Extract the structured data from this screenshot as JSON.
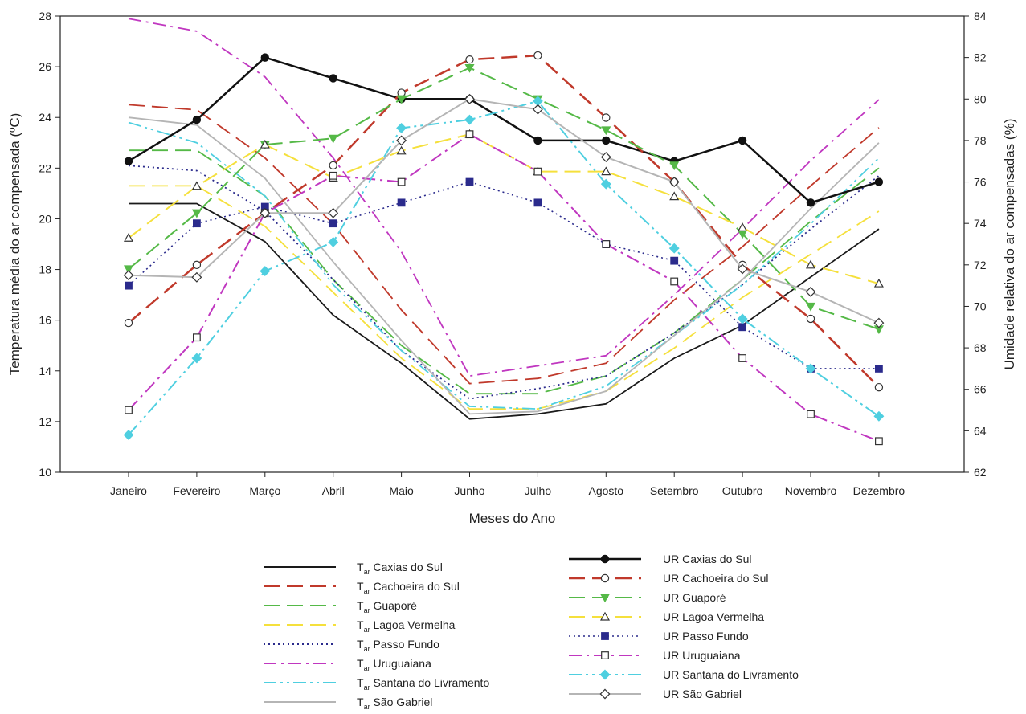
{
  "chart_data": {
    "type": "line",
    "categories": [
      "Janeiro",
      "Fevereiro",
      "Março",
      "Abril",
      "Maio",
      "Junho",
      "Julho",
      "Agosto",
      "Setembro",
      "Outubro",
      "Novembro",
      "Dezembro"
    ],
    "xlabel": "Meses do Ano",
    "ylabel": "Temperatura média do ar compensada (ºC)",
    "ylabel_right": "Umidade relativa do ar compensadas (%)",
    "ylim": [
      10,
      28
    ],
    "ylim_right": [
      62,
      84
    ],
    "yticks": [
      "10",
      "12",
      "14",
      "16",
      "18",
      "20",
      "22",
      "24",
      "26",
      "28"
    ],
    "yticks_right": [
      "62",
      "64",
      "66",
      "68",
      "70",
      "72",
      "74",
      "76",
      "78",
      "80",
      "82",
      "84"
    ],
    "grid": false,
    "legend_position": "bottom",
    "temperature_series": [
      {
        "prefix": "T",
        "sub": "ar",
        "name": "Caxias do Sul",
        "color": "#1a1a1a",
        "dash": "solid",
        "values": [
          20.6,
          20.6,
          19.1,
          16.2,
          14.3,
          12.1,
          12.3,
          12.7,
          14.5,
          15.8,
          17.7,
          19.6
        ]
      },
      {
        "prefix": "T",
        "sub": "ar",
        "name": "Cachoeira do Sul",
        "color": "#c0392b",
        "dash": "longdash",
        "values": [
          24.5,
          24.3,
          22.4,
          19.8,
          16.4,
          13.5,
          13.7,
          14.3,
          16.8,
          18.9,
          21.3,
          23.6
        ]
      },
      {
        "prefix": "T",
        "sub": "ar",
        "name": "Guaporé",
        "color": "#55b947",
        "dash": "longdash",
        "values": [
          22.7,
          22.7,
          20.9,
          17.6,
          15.0,
          13.1,
          13.1,
          13.8,
          15.5,
          17.6,
          19.9,
          22.0
        ]
      },
      {
        "prefix": "T",
        "sub": "ar",
        "name": "Lagoa Vermelha",
        "color": "#f5e03c",
        "dash": "longdash",
        "values": [
          21.3,
          21.3,
          19.7,
          17.1,
          14.5,
          12.5,
          12.5,
          13.2,
          14.9,
          16.9,
          18.6,
          20.3
        ]
      },
      {
        "prefix": "T",
        "sub": "ar",
        "name": "Passo Fundo",
        "color": "#2b2b8c",
        "dash": "dotted",
        "values": [
          22.1,
          21.9,
          20.3,
          17.6,
          14.8,
          12.9,
          13.3,
          13.8,
          15.5,
          17.4,
          19.6,
          21.7
        ]
      },
      {
        "prefix": "T",
        "sub": "ar",
        "name": "Uruguaiana",
        "color": "#c037c0",
        "dash": "dashdot",
        "values": [
          27.9,
          27.4,
          25.6,
          22.4,
          18.7,
          13.8,
          14.2,
          14.6,
          17.0,
          19.6,
          22.3,
          24.7
        ]
      },
      {
        "prefix": "T",
        "sub": "ar",
        "name": "Santana do Livramento",
        "color": "#4fcfe0",
        "dash": "dashdotdot",
        "values": [
          23.8,
          23.0,
          20.9,
          17.4,
          14.8,
          12.6,
          12.5,
          13.4,
          15.4,
          17.4,
          19.8,
          22.4
        ]
      },
      {
        "prefix": "T",
        "sub": "ar",
        "name": "São Gabriel",
        "color": "#b5b5b5",
        "dash": "solid",
        "values": [
          24.0,
          23.7,
          21.6,
          18.3,
          15.2,
          12.3,
          12.4,
          13.2,
          15.4,
          17.6,
          20.4,
          23.0
        ]
      }
    ],
    "humidity_series": [
      {
        "name": "UR Caxias do Sul",
        "color": "#111111",
        "dash": "solid",
        "width": 2.5,
        "marker": "circle",
        "fill": "filled",
        "values": [
          77.0,
          79.0,
          82.0,
          81.0,
          80.0,
          80.0,
          78.0,
          78.0,
          77.0,
          78.0,
          75.0,
          76.0
        ]
      },
      {
        "name": "UR Cachoeira do Sul",
        "color": "#c0392b",
        "dash": "longdash",
        "width": 2.5,
        "marker": "circle",
        "fill": "open",
        "values": [
          69.2,
          72.0,
          74.5,
          76.8,
          80.3,
          81.9,
          82.1,
          79.1,
          76.0,
          72.0,
          69.4,
          66.1
        ]
      },
      {
        "name": "UR Guaporé",
        "color": "#55b947",
        "dash": "longdash",
        "width": 2.0,
        "marker": "triangle-down",
        "fill": "filled",
        "values": [
          71.8,
          74.5,
          77.8,
          78.1,
          80.0,
          81.5,
          80.0,
          78.5,
          76.8,
          73.5,
          70.0,
          68.9
        ]
      },
      {
        "name": "UR Lagoa Vermelha",
        "color": "#f5e03c",
        "dash": "longdash",
        "width": 2.0,
        "marker": "triangle-up",
        "fill": "open",
        "values": [
          73.3,
          75.8,
          77.8,
          76.2,
          77.5,
          78.3,
          76.5,
          76.5,
          75.3,
          73.8,
          72.0,
          71.1
        ]
      },
      {
        "name": "UR Passo Fundo",
        "color": "#2b2b8c",
        "dash": "dotted",
        "width": 1.6,
        "marker": "square",
        "fill": "filled",
        "values": [
          71.0,
          74.0,
          74.8,
          74.0,
          75.0,
          76.0,
          75.0,
          73.0,
          72.2,
          69.0,
          67.0,
          67.0
        ]
      },
      {
        "name": "UR Uruguaiana",
        "color": "#c037c0",
        "dash": "dashdot",
        "width": 2.0,
        "marker": "square",
        "fill": "open",
        "values": [
          65.0,
          68.5,
          74.5,
          76.3,
          76.0,
          78.3,
          76.5,
          73.0,
          71.2,
          67.5,
          64.8,
          63.5
        ]
      },
      {
        "name": "UR Santana do Livramento",
        "color": "#4fcfe0",
        "dash": "dashdotdot",
        "width": 2.0,
        "marker": "diamond",
        "fill": "filled",
        "values": [
          63.8,
          67.5,
          71.7,
          73.1,
          78.6,
          79.0,
          79.9,
          75.9,
          72.8,
          69.4,
          67.0,
          64.7
        ]
      },
      {
        "name": "UR São Gabriel",
        "color": "#b5b5b5",
        "dash": "solid",
        "width": 2.0,
        "marker": "diamond",
        "fill": "open",
        "values": [
          71.5,
          71.4,
          74.5,
          74.5,
          78.0,
          80.0,
          79.5,
          77.2,
          76.0,
          71.8,
          70.7,
          69.2
        ]
      }
    ]
  }
}
